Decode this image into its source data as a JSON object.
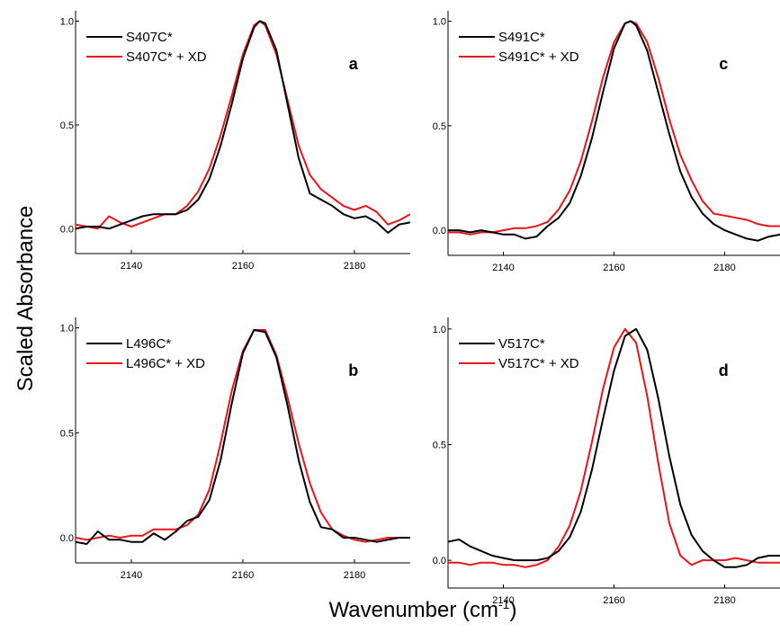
{
  "figure": {
    "ylabel": "Scaled Absorbance",
    "xlabel_main": "Wavenumber (cm",
    "xlabel_sup": "-1",
    "xlabel_close": ")"
  },
  "colors": {
    "unlabeled": "#000000",
    "labeled_xd": "#e8141a"
  },
  "chart_data": [
    {
      "type": "line",
      "panel": "a",
      "xlim": [
        2130,
        2190
      ],
      "ylim": [
        -0.12,
        1.05
      ],
      "xticks": [
        2140,
        2160,
        2180
      ],
      "yticks": [
        0.0,
        0.5,
        1.0
      ],
      "ytick_labels": [
        "0.0",
        "0.5",
        "1.0"
      ],
      "legend_placement": "top-left",
      "series": [
        {
          "name": "S407C*",
          "color": "#000000",
          "x": [
            2130,
            2132,
            2134,
            2136,
            2138,
            2140,
            2142,
            2144,
            2146,
            2148,
            2150,
            2152,
            2154,
            2156,
            2158,
            2160,
            2162,
            2163,
            2164,
            2166,
            2168,
            2170,
            2172,
            2174,
            2176,
            2178,
            2180,
            2182,
            2184,
            2186,
            2188,
            2190
          ],
          "y": [
            0.0,
            0.01,
            0.01,
            0.0,
            0.02,
            0.04,
            0.06,
            0.07,
            0.07,
            0.07,
            0.09,
            0.14,
            0.24,
            0.4,
            0.6,
            0.82,
            0.97,
            1.0,
            0.99,
            0.86,
            0.6,
            0.34,
            0.17,
            0.14,
            0.11,
            0.07,
            0.05,
            0.06,
            0.03,
            -0.02,
            0.02,
            0.03
          ]
        },
        {
          "name": "S407C* + XD",
          "color": "#e8141a",
          "x": [
            2130,
            2132,
            2134,
            2136,
            2138,
            2140,
            2142,
            2144,
            2146,
            2148,
            2150,
            2152,
            2154,
            2156,
            2158,
            2160,
            2162,
            2163,
            2164,
            2166,
            2168,
            2170,
            2172,
            2174,
            2176,
            2178,
            2180,
            2182,
            2184,
            2186,
            2188,
            2190
          ],
          "y": [
            0.02,
            0.01,
            0.0,
            0.06,
            0.03,
            0.01,
            0.03,
            0.05,
            0.07,
            0.07,
            0.11,
            0.18,
            0.29,
            0.45,
            0.64,
            0.84,
            0.98,
            1.0,
            0.98,
            0.84,
            0.62,
            0.4,
            0.26,
            0.19,
            0.15,
            0.11,
            0.09,
            0.11,
            0.08,
            0.02,
            0.04,
            0.07
          ]
        }
      ]
    },
    {
      "type": "line",
      "panel": "c",
      "xlim": [
        2130,
        2190
      ],
      "ylim": [
        -0.12,
        1.05
      ],
      "xticks": [
        2140,
        2160,
        2180
      ],
      "yticks": [
        0.0,
        0.5,
        1.0
      ],
      "ytick_labels": [
        "0.0",
        "0.5",
        "1.0"
      ],
      "legend_placement": "top-left",
      "series": [
        {
          "name": "S491C*",
          "color": "#000000",
          "x": [
            2130,
            2132,
            2134,
            2136,
            2138,
            2140,
            2142,
            2144,
            2146,
            2148,
            2150,
            2152,
            2154,
            2156,
            2158,
            2160,
            2162,
            2163,
            2164,
            2166,
            2168,
            2170,
            2172,
            2174,
            2176,
            2178,
            2180,
            2182,
            2184,
            2186,
            2188,
            2190
          ],
          "y": [
            0.0,
            0.0,
            -0.01,
            0.0,
            -0.01,
            -0.02,
            -0.02,
            -0.04,
            -0.03,
            0.02,
            0.06,
            0.13,
            0.26,
            0.44,
            0.66,
            0.87,
            0.99,
            1.0,
            0.98,
            0.86,
            0.66,
            0.46,
            0.28,
            0.16,
            0.08,
            0.03,
            0.0,
            -0.02,
            -0.04,
            -0.05,
            -0.03,
            -0.02
          ]
        },
        {
          "name": "S491C* + XD",
          "color": "#e8141a",
          "x": [
            2130,
            2132,
            2134,
            2136,
            2138,
            2140,
            2142,
            2144,
            2146,
            2148,
            2150,
            2152,
            2154,
            2156,
            2158,
            2160,
            2162,
            2163,
            2164,
            2166,
            2168,
            2170,
            2172,
            2174,
            2176,
            2178,
            2180,
            2182,
            2184,
            2186,
            2188,
            2190
          ],
          "y": [
            -0.01,
            -0.01,
            -0.02,
            -0.01,
            -0.01,
            0.0,
            0.01,
            0.01,
            0.02,
            0.04,
            0.1,
            0.19,
            0.33,
            0.52,
            0.73,
            0.9,
            0.99,
            1.0,
            0.99,
            0.9,
            0.73,
            0.53,
            0.36,
            0.24,
            0.14,
            0.08,
            0.07,
            0.06,
            0.05,
            0.03,
            0.02,
            0.02
          ]
        }
      ]
    },
    {
      "type": "line",
      "panel": "b",
      "xlim": [
        2130,
        2190
      ],
      "ylim": [
        -0.12,
        1.05
      ],
      "xticks": [
        2140,
        2160,
        2180
      ],
      "yticks": [
        0.0,
        0.5,
        1.0
      ],
      "ytick_labels": [
        "0.0",
        "0.5",
        "1.0"
      ],
      "legend_placement": "top-left",
      "series": [
        {
          "name": "L496C*",
          "color": "#000000",
          "x": [
            2130,
            2132,
            2134,
            2136,
            2138,
            2140,
            2142,
            2144,
            2146,
            2148,
            2150,
            2152,
            2154,
            2156,
            2158,
            2160,
            2162,
            2164,
            2166,
            2168,
            2170,
            2172,
            2174,
            2176,
            2178,
            2180,
            2182,
            2184,
            2186,
            2188,
            2190
          ],
          "y": [
            -0.02,
            -0.03,
            0.03,
            -0.01,
            -0.01,
            -0.02,
            -0.02,
            0.02,
            -0.01,
            0.03,
            0.08,
            0.1,
            0.18,
            0.37,
            0.64,
            0.88,
            0.99,
            0.98,
            0.86,
            0.63,
            0.37,
            0.17,
            0.05,
            0.04,
            0.0,
            0.0,
            -0.01,
            -0.02,
            -0.01,
            0.0,
            0.0
          ]
        },
        {
          "name": "L496C* + XD",
          "color": "#e8141a",
          "x": [
            2130,
            2132,
            2134,
            2136,
            2138,
            2140,
            2142,
            2144,
            2146,
            2148,
            2150,
            2152,
            2154,
            2156,
            2158,
            2160,
            2162,
            2164,
            2166,
            2168,
            2170,
            2172,
            2174,
            2176,
            2178,
            2180,
            2182,
            2184,
            2186,
            2188,
            2190
          ],
          "y": [
            0.0,
            -0.01,
            0.0,
            0.01,
            0.0,
            0.01,
            0.01,
            0.04,
            0.04,
            0.04,
            0.06,
            0.11,
            0.23,
            0.45,
            0.7,
            0.89,
            0.99,
            0.99,
            0.87,
            0.67,
            0.45,
            0.26,
            0.12,
            0.04,
            0.01,
            -0.01,
            -0.02,
            -0.01,
            0.0,
            0.0,
            0.0
          ]
        }
      ]
    },
    {
      "type": "line",
      "panel": "d",
      "xlim": [
        2130,
        2190
      ],
      "ylim": [
        -0.12,
        1.05
      ],
      "xticks": [
        2140,
        2160,
        2180
      ],
      "yticks": [
        0.0,
        0.5,
        1.0
      ],
      "ytick_labels": [
        "0.0",
        "0.5",
        "1.0"
      ],
      "legend_placement": "top-left",
      "series": [
        {
          "name": "V517C*",
          "color": "#000000",
          "x": [
            2130,
            2132,
            2134,
            2136,
            2138,
            2140,
            2142,
            2144,
            2146,
            2148,
            2150,
            2152,
            2154,
            2156,
            2158,
            2160,
            2162,
            2164,
            2166,
            2168,
            2170,
            2172,
            2174,
            2176,
            2178,
            2180,
            2182,
            2184,
            2186,
            2188,
            2190
          ],
          "y": [
            0.08,
            0.09,
            0.06,
            0.04,
            0.02,
            0.01,
            0.0,
            0.0,
            0.0,
            0.01,
            0.04,
            0.1,
            0.21,
            0.39,
            0.61,
            0.82,
            0.97,
            1.0,
            0.91,
            0.7,
            0.45,
            0.24,
            0.11,
            0.04,
            0.0,
            -0.03,
            -0.03,
            -0.02,
            0.01,
            0.02,
            0.02
          ]
        },
        {
          "name": "V517C* + XD",
          "color": "#e8141a",
          "x": [
            2130,
            2132,
            2134,
            2136,
            2138,
            2140,
            2142,
            2144,
            2146,
            2148,
            2150,
            2152,
            2154,
            2156,
            2158,
            2160,
            2162,
            2164,
            2166,
            2168,
            2170,
            2172,
            2174,
            2176,
            2178,
            2180,
            2182,
            2184,
            2186,
            2188,
            2190
          ],
          "y": [
            -0.01,
            -0.01,
            -0.02,
            -0.01,
            -0.01,
            -0.02,
            -0.02,
            -0.03,
            -0.02,
            0.0,
            0.06,
            0.15,
            0.3,
            0.51,
            0.74,
            0.92,
            1.0,
            0.94,
            0.71,
            0.42,
            0.16,
            0.02,
            -0.02,
            0.0,
            0.0,
            0.0,
            0.01,
            0.0,
            -0.01,
            -0.01,
            -0.01
          ]
        }
      ]
    }
  ]
}
